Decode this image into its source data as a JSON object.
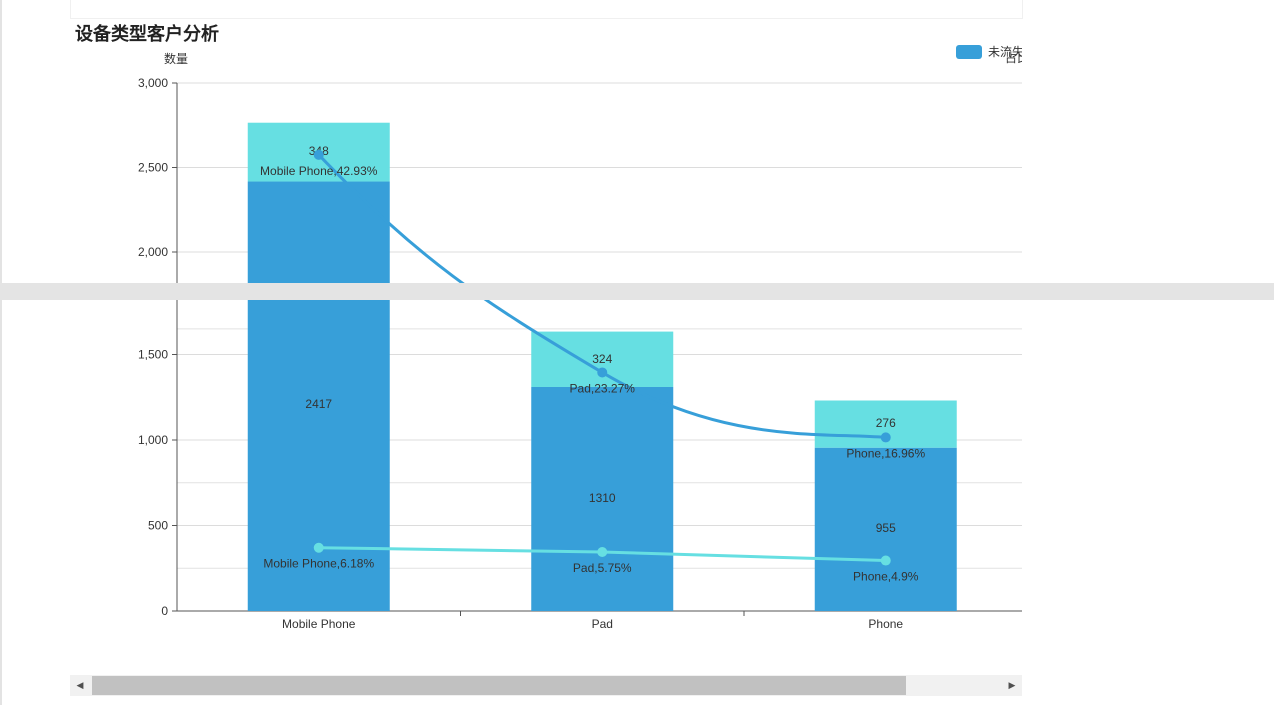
{
  "page": {
    "title": "设备类型客户分析",
    "legend": [
      {
        "label": "未流失",
        "color": "#379fd9"
      },
      {
        "label": "占比",
        "color": "#66dfe2"
      }
    ]
  },
  "chart_data": {
    "type": "bar",
    "ylabel": "数量",
    "ylim": [
      0,
      3000
    ],
    "yticks": [
      "0",
      "500",
      "1,000",
      "1,500",
      "2,000",
      "2,500",
      "3,000"
    ],
    "categories": [
      "Mobile Phone",
      "Pad",
      "Phone"
    ],
    "series": [
      {
        "name": "未流失",
        "values": [
          2417,
          1310,
          955
        ],
        "color": "#379fd9"
      },
      {
        "values": [
          348,
          324,
          276
        ],
        "color": "#66dfe2"
      }
    ],
    "lines": [
      {
        "values": [
          2575,
          1395,
          1015
        ],
        "color": "#379fd9",
        "labels": [
          "Mobile Phone,42.93%",
          "Pad,23.27%",
          "Phone,16.96%"
        ]
      },
      {
        "values": [
          370,
          345,
          295
        ],
        "color": "#66dfe2",
        "labels": [
          "Mobile Phone,6.18%",
          "Pad,5.75%",
          "Phone,4.9%"
        ]
      }
    ],
    "grid": true
  }
}
